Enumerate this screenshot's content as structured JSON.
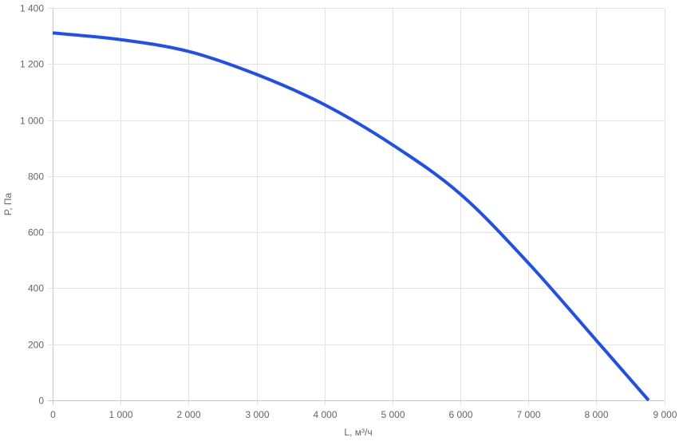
{
  "chart_data": {
    "type": "line",
    "xlabel": "L, м³/ч",
    "ylabel": "P, Па",
    "xlim": [
      0,
      9000
    ],
    "ylim": [
      0,
      1400
    ],
    "grid": true,
    "x_ticks": [
      "0",
      "1 000",
      "2 000",
      "3 000",
      "4 000",
      "5 000",
      "6 000",
      "7 000",
      "8 000",
      "9 000"
    ],
    "y_ticks": [
      "0",
      "200",
      "400",
      "600",
      "800",
      "1 000",
      "1 200",
      "1 400"
    ],
    "series": [
      {
        "color": "#1f4ff0",
        "x": [
          0,
          1000,
          2000,
          3000,
          4000,
          5000,
          6000,
          7000,
          8000,
          8770
        ],
        "y": [
          1311,
          1287,
          1245,
          1163,
          1055,
          912,
          736,
          490,
          214,
          0
        ]
      }
    ]
  }
}
